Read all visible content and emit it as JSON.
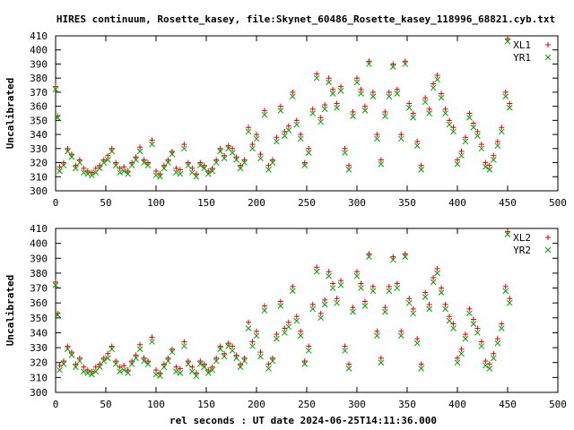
{
  "title": "HIRES continuum, Rosette_kasey, file:Skynet_60486_Rosette_kasey_118996_68821.cyb.txt",
  "xlabel": "rel seconds : UT date 2024-06-25T14:11:36.000",
  "colors": {
    "red_series": "#e00000",
    "green_series": "#00a000",
    "axis": "#000000"
  },
  "chart_data": [
    {
      "type": "scatter",
      "ylabel": "Uncalibrated",
      "xlim": [
        0,
        500
      ],
      "ylim": [
        300,
        410
      ],
      "xticks": [
        0,
        50,
        100,
        150,
        200,
        250,
        300,
        350,
        400,
        450,
        500
      ],
      "yticks": [
        300,
        310,
        320,
        330,
        340,
        350,
        360,
        370,
        380,
        390,
        400,
        410
      ],
      "legend": "top-right",
      "grid": false,
      "series": [
        {
          "name": "XL1",
          "marker": "plus",
          "color": "#e00000",
          "x": [
            0,
            2,
            4,
            8,
            12,
            16,
            20,
            24,
            28,
            32,
            36,
            40,
            44,
            48,
            52,
            56,
            60,
            64,
            68,
            72,
            76,
            80,
            84,
            88,
            92,
            96,
            100,
            104,
            108,
            112,
            116,
            120,
            124,
            128,
            132,
            136,
            140,
            144,
            148,
            152,
            156,
            160,
            164,
            168,
            172,
            176,
            180,
            184,
            188,
            192,
            196,
            200,
            204,
            208,
            212,
            216,
            220,
            224,
            228,
            232,
            236,
            240,
            244,
            248,
            252,
            256,
            260,
            264,
            268,
            272,
            276,
            280,
            284,
            288,
            292,
            296,
            300,
            304,
            308,
            312,
            316,
            320,
            324,
            328,
            332,
            336,
            340,
            344,
            348,
            352,
            356,
            360,
            364,
            368,
            372,
            376,
            380,
            384,
            388,
            392,
            396,
            400,
            404,
            408,
            412,
            416,
            420,
            424,
            428,
            432,
            436,
            440,
            444,
            448,
            450,
            452
          ],
          "y": [
            374,
            353,
            317,
            320,
            330,
            326,
            318,
            322,
            316,
            314,
            313,
            316,
            318,
            322,
            325,
            330,
            320,
            316,
            317,
            314,
            320,
            324,
            331,
            322,
            320,
            336,
            314,
            312,
            318,
            322,
            328,
            316,
            315,
            333,
            320,
            316,
            312,
            320,
            318,
            314,
            316,
            322,
            330,
            325,
            332,
            330,
            324,
            318,
            322,
            345,
            333,
            340,
            326,
            357,
            318,
            322,
            338,
            360,
            342,
            346,
            370,
            350,
            340,
            320,
            330,
            358,
            383,
            352,
            361,
            380,
            372,
            362,
            374,
            330,
            318,
            356,
            380,
            372,
            360,
            392,
            370,
            340,
            322,
            356,
            370,
            390,
            372,
            340,
            392,
            362,
            355,
            335,
            318,
            366,
            358,
            376,
            382,
            369,
            358,
            350,
            345,
            322,
            328,
            338,
            355,
            348,
            342,
            333,
            320,
            318,
            325,
            335,
            345,
            370,
            408,
            362
          ]
        },
        {
          "name": "YR1",
          "marker": "cross",
          "color": "#00a000",
          "x": [
            0,
            2,
            4,
            8,
            12,
            16,
            20,
            24,
            28,
            32,
            36,
            40,
            44,
            48,
            52,
            56,
            60,
            64,
            68,
            72,
            76,
            80,
            84,
            88,
            92,
            96,
            100,
            104,
            108,
            112,
            116,
            120,
            124,
            128,
            132,
            136,
            140,
            144,
            148,
            152,
            156,
            160,
            164,
            168,
            172,
            176,
            180,
            184,
            188,
            192,
            196,
            200,
            204,
            208,
            212,
            216,
            220,
            224,
            228,
            232,
            236,
            240,
            244,
            248,
            252,
            256,
            260,
            264,
            268,
            272,
            276,
            280,
            284,
            288,
            292,
            296,
            300,
            304,
            308,
            312,
            316,
            320,
            324,
            328,
            332,
            336,
            340,
            344,
            348,
            352,
            356,
            360,
            364,
            368,
            372,
            376,
            380,
            384,
            388,
            392,
            396,
            400,
            404,
            408,
            412,
            416,
            420,
            424,
            428,
            432,
            436,
            440,
            444,
            448,
            450,
            452
          ],
          "y": [
            372,
            352,
            314,
            318,
            328,
            324,
            316,
            320,
            313,
            312,
            311,
            313,
            316,
            320,
            322,
            328,
            318,
            313,
            314,
            312,
            318,
            322,
            328,
            320,
            318,
            333,
            311,
            310,
            316,
            320,
            326,
            313,
            312,
            330,
            318,
            313,
            310,
            318,
            316,
            312,
            314,
            320,
            328,
            323,
            330,
            327,
            322,
            316,
            320,
            342,
            330,
            337,
            323,
            354,
            315,
            320,
            335,
            357,
            339,
            343,
            367,
            347,
            337,
            318,
            327,
            355,
            380,
            349,
            358,
            377,
            369,
            359,
            371,
            327,
            315,
            353,
            377,
            369,
            357,
            390,
            367,
            337,
            319,
            353,
            367,
            388,
            369,
            337,
            390,
            359,
            352,
            332,
            315,
            363,
            355,
            373,
            379,
            366,
            355,
            347,
            342,
            319,
            325,
            335,
            352,
            345,
            339,
            330,
            317,
            315,
            322,
            332,
            342,
            367,
            406,
            359
          ]
        }
      ]
    },
    {
      "type": "scatter",
      "ylabel": "Uncalibrated",
      "xlim": [
        0,
        500
      ],
      "ylim": [
        300,
        410
      ],
      "xticks": [
        0,
        50,
        100,
        150,
        200,
        250,
        300,
        350,
        400,
        450,
        500
      ],
      "yticks": [
        300,
        310,
        320,
        330,
        340,
        350,
        360,
        370,
        380,
        390,
        400,
        410
      ],
      "legend": "top-right",
      "grid": false,
      "series": [
        {
          "name": "XL2",
          "marker": "plus",
          "color": "#e00000",
          "x": [
            0,
            2,
            4,
            8,
            12,
            16,
            20,
            24,
            28,
            32,
            36,
            40,
            44,
            48,
            52,
            56,
            60,
            64,
            68,
            72,
            76,
            80,
            84,
            88,
            92,
            96,
            100,
            104,
            108,
            112,
            116,
            120,
            124,
            128,
            132,
            136,
            140,
            144,
            148,
            152,
            156,
            160,
            164,
            168,
            172,
            176,
            180,
            184,
            188,
            192,
            196,
            200,
            204,
            208,
            212,
            216,
            220,
            224,
            228,
            232,
            236,
            240,
            244,
            248,
            252,
            256,
            260,
            264,
            268,
            272,
            276,
            280,
            284,
            288,
            292,
            296,
            300,
            304,
            308,
            312,
            316,
            320,
            324,
            328,
            332,
            336,
            340,
            344,
            348,
            352,
            356,
            360,
            364,
            368,
            372,
            376,
            380,
            384,
            388,
            392,
            396,
            400,
            404,
            408,
            412,
            416,
            420,
            424,
            428,
            432,
            436,
            440,
            444,
            448,
            450,
            452
          ],
          "y": [
            374,
            353,
            318,
            321,
            331,
            327,
            319,
            323,
            317,
            315,
            314,
            317,
            319,
            323,
            326,
            331,
            321,
            317,
            318,
            315,
            321,
            325,
            332,
            323,
            321,
            337,
            315,
            313,
            319,
            323,
            329,
            317,
            316,
            334,
            321,
            317,
            313,
            321,
            319,
            315,
            317,
            323,
            331,
            326,
            333,
            331,
            325,
            319,
            323,
            347,
            334,
            341,
            327,
            358,
            319,
            323,
            339,
            361,
            343,
            347,
            371,
            351,
            341,
            321,
            331,
            359,
            384,
            353,
            362,
            381,
            373,
            363,
            375,
            331,
            319,
            357,
            381,
            373,
            361,
            393,
            371,
            341,
            323,
            357,
            371,
            391,
            373,
            341,
            393,
            363,
            356,
            336,
            319,
            367,
            359,
            377,
            383,
            370,
            359,
            351,
            346,
            323,
            329,
            339,
            356,
            349,
            343,
            334,
            321,
            319,
            326,
            336,
            346,
            371,
            408,
            363
          ]
        },
        {
          "name": "YR2",
          "marker": "cross",
          "color": "#00a000",
          "x": [
            0,
            2,
            4,
            8,
            12,
            16,
            20,
            24,
            28,
            32,
            36,
            40,
            44,
            48,
            52,
            56,
            60,
            64,
            68,
            72,
            76,
            80,
            84,
            88,
            92,
            96,
            100,
            104,
            108,
            112,
            116,
            120,
            124,
            128,
            132,
            136,
            140,
            144,
            148,
            152,
            156,
            160,
            164,
            168,
            172,
            176,
            180,
            184,
            188,
            192,
            196,
            200,
            204,
            208,
            212,
            216,
            220,
            224,
            228,
            232,
            236,
            240,
            244,
            248,
            252,
            256,
            260,
            264,
            268,
            272,
            276,
            280,
            284,
            288,
            292,
            296,
            300,
            304,
            308,
            312,
            316,
            320,
            324,
            328,
            332,
            336,
            340,
            344,
            348,
            352,
            356,
            360,
            364,
            368,
            372,
            376,
            380,
            384,
            388,
            392,
            396,
            400,
            404,
            408,
            412,
            416,
            420,
            424,
            428,
            432,
            436,
            440,
            444,
            448,
            450,
            452
          ],
          "y": [
            372,
            352,
            315,
            319,
            329,
            325,
            317,
            321,
            314,
            313,
            312,
            314,
            317,
            321,
            323,
            329,
            319,
            314,
            315,
            313,
            319,
            323,
            329,
            321,
            319,
            334,
            312,
            311,
            317,
            321,
            327,
            314,
            313,
            331,
            319,
            314,
            311,
            319,
            317,
            313,
            315,
            321,
            329,
            324,
            331,
            328,
            323,
            317,
            321,
            343,
            331,
            338,
            324,
            355,
            316,
            321,
            336,
            358,
            340,
            344,
            368,
            348,
            338,
            319,
            328,
            356,
            381,
            350,
            359,
            378,
            370,
            360,
            372,
            328,
            316,
            354,
            378,
            370,
            358,
            391,
            368,
            338,
            320,
            354,
            368,
            389,
            370,
            338,
            391,
            360,
            353,
            333,
            316,
            364,
            356,
            374,
            380,
            367,
            356,
            348,
            343,
            320,
            326,
            336,
            353,
            346,
            340,
            331,
            318,
            316,
            323,
            333,
            343,
            368,
            406,
            360
          ]
        }
      ]
    }
  ]
}
